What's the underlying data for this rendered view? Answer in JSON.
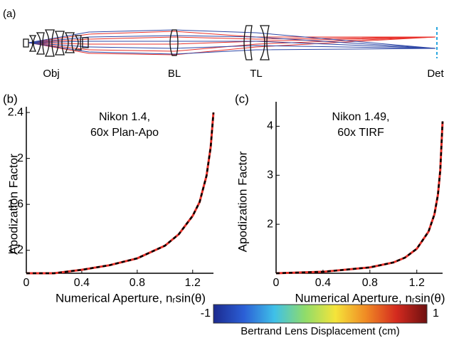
{
  "panel_a": {
    "label": "(a)",
    "elements": [
      "Obj",
      "BL",
      "TL",
      "Det"
    ]
  },
  "chart_data": [
    {
      "type": "line",
      "panel_label": "(b)",
      "annotations": [
        "Nikon 1.4,",
        "60x Plan-Apo"
      ],
      "x_label": "Numerical Aperture, nᵣsin(θ)",
      "y_label": "Apodization Factor",
      "x": [
        0,
        0.2,
        0.4,
        0.6,
        0.8,
        1.0,
        1.1,
        1.2,
        1.25,
        1.3,
        1.33,
        1.35
      ],
      "series": [
        {
          "color": "#e8312a",
          "dash": false,
          "values": [
            1.0,
            1.0,
            1.03,
            1.07,
            1.13,
            1.24,
            1.34,
            1.5,
            1.62,
            1.85,
            2.1,
            2.4
          ]
        },
        {
          "color": "#000000",
          "dash": true,
          "values": [
            1.0,
            1.0,
            1.03,
            1.07,
            1.13,
            1.24,
            1.34,
            1.5,
            1.62,
            1.85,
            2.1,
            2.4
          ]
        }
      ],
      "xlim": [
        0,
        1.35
      ],
      "ylim": [
        1.0,
        2.45
      ],
      "xticks": [
        0,
        0.4,
        0.8,
        1.2
      ],
      "yticks": [
        1.2,
        1.6,
        2.0,
        2.4
      ]
    },
    {
      "type": "line",
      "panel_label": "(c)",
      "annotations": [
        "Nikon 1.49,",
        "60x TIRF"
      ],
      "x_label": "Numerical Aperture, nᵣsin(θ)",
      "y_label": "Apodization Factor",
      "x": [
        0,
        0.4,
        0.8,
        1.0,
        1.1,
        1.2,
        1.3,
        1.35,
        1.38,
        1.4,
        1.42
      ],
      "series": [
        {
          "color": "#e8312a",
          "dash": false,
          "values": [
            1.0,
            1.03,
            1.12,
            1.22,
            1.32,
            1.5,
            1.85,
            2.2,
            2.6,
            3.1,
            4.1
          ]
        },
        {
          "color": "#000000",
          "dash": true,
          "values": [
            1.0,
            1.03,
            1.12,
            1.22,
            1.32,
            1.5,
            1.85,
            2.2,
            2.6,
            3.1,
            4.1
          ]
        }
      ],
      "xlim": [
        0,
        1.42
      ],
      "ylim": [
        1.0,
        4.5
      ],
      "xticks": [
        0,
        0.4,
        0.8,
        1.2
      ],
      "yticks": [
        2.0,
        3.0,
        4.0
      ]
    }
  ],
  "colorbar": {
    "label": "Bertrand Lens Displacement (cm)",
    "ticks": [
      -1,
      1
    ],
    "lim": [
      -1,
      1
    ],
    "colors": [
      "#1c2a8f",
      "#2b5fd6",
      "#3fc0e8",
      "#8fdc6a",
      "#f5e43a",
      "#f08a24",
      "#d42a1f",
      "#6e1010"
    ]
  }
}
